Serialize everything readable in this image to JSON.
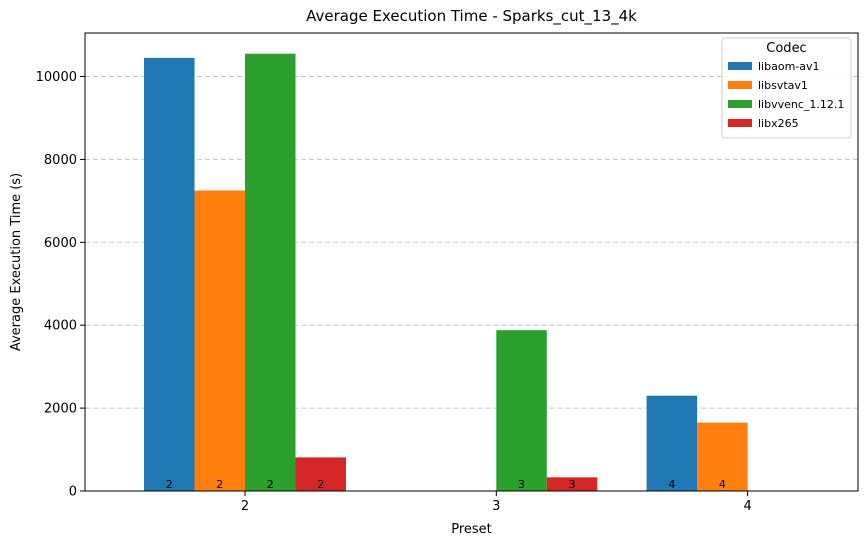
{
  "chart_data": {
    "type": "bar",
    "title": "Average Execution Time - Sparks_cut_13_4k",
    "xlabel": "Preset",
    "ylabel": "Average Execution Time (s)",
    "categories": [
      "2",
      "3",
      "4"
    ],
    "ylim": [
      0,
      11050
    ],
    "yticks": [
      0,
      2000,
      4000,
      6000,
      8000,
      10000
    ],
    "grid": "y-dashed",
    "legend": {
      "title": "Codec",
      "placement": "top-right"
    },
    "series": [
      {
        "name": "libaom-av1",
        "color": "#1f77b4",
        "values": [
          10450,
          null,
          2300
        ],
        "labels": [
          "2",
          "",
          "4"
        ]
      },
      {
        "name": "libsvtav1",
        "color": "#ff7f0e",
        "values": [
          7250,
          null,
          1650
        ],
        "labels": [
          "2",
          "",
          "4"
        ]
      },
      {
        "name": "libvvenc_1.12.1",
        "color": "#2ca02c",
        "values": [
          10550,
          3880,
          null
        ],
        "labels": [
          "2",
          "3",
          ""
        ]
      },
      {
        "name": "libx265",
        "color": "#d62728",
        "values": [
          810,
          330,
          null
        ],
        "labels": [
          "2",
          "3",
          ""
        ]
      }
    ]
  }
}
